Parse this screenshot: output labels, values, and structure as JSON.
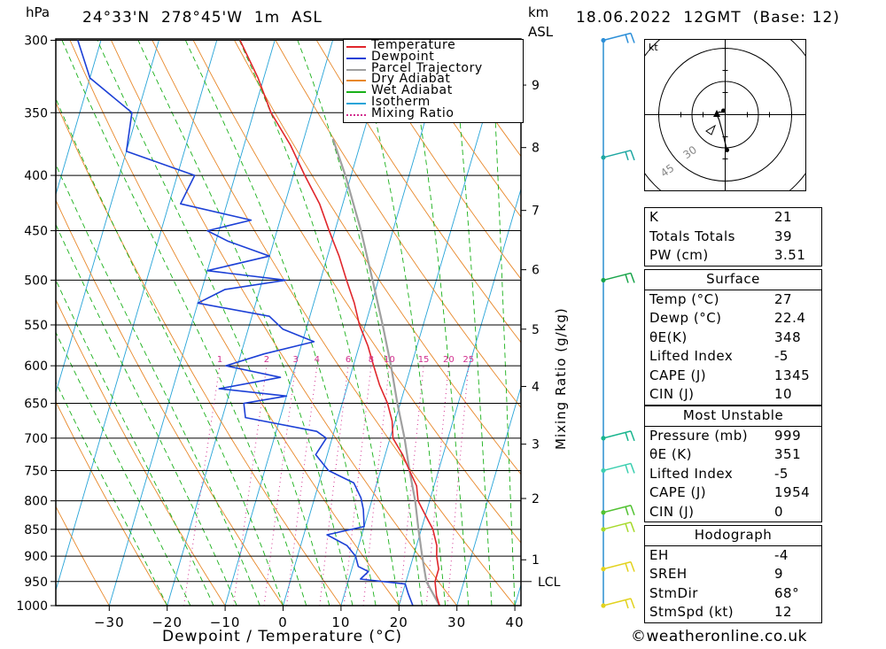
{
  "header": {
    "location": "24°33'N  278°45'W  1m  ASL",
    "datetime": "18.06.2022  12GMT  (Base: 12)",
    "pressure_unit": "hPa",
    "height_unit_km": "km",
    "height_unit_asl": "ASL"
  },
  "chart_data": {
    "type": "skew-t",
    "xlabel": "Dewpoint / Temperature (°C)",
    "ylabel_left": "hPa",
    "ylabel_right": "Mixing Ratio (g/kg)",
    "pressure_levels": [
      300,
      350,
      400,
      450,
      500,
      550,
      600,
      650,
      700,
      750,
      800,
      850,
      900,
      950,
      1000
    ],
    "temperature_ticks": [
      -30,
      -20,
      -10,
      0,
      10,
      20,
      30,
      40
    ],
    "height_km_ticks": [
      {
        "km": "1",
        "p": 907
      },
      {
        "km": "2",
        "p": 796
      },
      {
        "km": "3",
        "p": 709
      },
      {
        "km": "4",
        "p": 627
      },
      {
        "km": "5",
        "p": 555
      },
      {
        "km": "6",
        "p": 489
      },
      {
        "km": "7",
        "p": 431
      },
      {
        "km": "8",
        "p": 377
      },
      {
        "km": "9",
        "p": 330
      }
    ],
    "lcl": {
      "label": "LCL",
      "p": 950
    },
    "mixing_ratio_labels": [
      "1",
      "2",
      "3",
      "4",
      "6",
      "8",
      "10",
      "15",
      "20",
      "25"
    ],
    "legend": [
      "Temperature",
      "Dewpoint",
      "Parcel Trajectory",
      "Dry Adiabat",
      "Wet Adiabat",
      "Isotherm",
      "Mixing Ratio"
    ],
    "colors": {
      "temperature": "#e0262b",
      "dewpoint": "#1c40d6",
      "parcel": "#a0a0a0",
      "dry_adiabat": "#e8882a",
      "wet_adiabat": "#19b019",
      "isotherm": "#27a4d8",
      "mixing_ratio": "#d22e8e"
    },
    "temperature_profile": [
      {
        "p": 1000,
        "t": 27
      },
      {
        "p": 980,
        "t": 26
      },
      {
        "p": 950,
        "t": 25
      },
      {
        "p": 925,
        "t": 25
      },
      {
        "p": 900,
        "t": 24
      },
      {
        "p": 880,
        "t": 23.5
      },
      {
        "p": 850,
        "t": 22
      },
      {
        "p": 825,
        "t": 20
      },
      {
        "p": 800,
        "t": 18
      },
      {
        "p": 775,
        "t": 17
      },
      {
        "p": 750,
        "t": 15
      },
      {
        "p": 725,
        "t": 13
      },
      {
        "p": 700,
        "t": 10.5
      },
      {
        "p": 675,
        "t": 9.5
      },
      {
        "p": 650,
        "t": 7.8
      },
      {
        "p": 625,
        "t": 5.5
      },
      {
        "p": 600,
        "t": 3.5
      },
      {
        "p": 575,
        "t": 1.5
      },
      {
        "p": 550,
        "t": -1
      },
      {
        "p": 525,
        "t": -3
      },
      {
        "p": 500,
        "t": -5.5
      },
      {
        "p": 475,
        "t": -8
      },
      {
        "p": 450,
        "t": -11
      },
      {
        "p": 425,
        "t": -14
      },
      {
        "p": 400,
        "t": -18
      },
      {
        "p": 375,
        "t": -22
      },
      {
        "p": 350,
        "t": -27
      },
      {
        "p": 325,
        "t": -31
      },
      {
        "p": 300,
        "t": -36
      }
    ],
    "dewpoint_profile": [
      {
        "p": 1000,
        "t": 22.4
      },
      {
        "p": 975,
        "t": 21
      },
      {
        "p": 955,
        "t": 20
      },
      {
        "p": 945,
        "t": 12
      },
      {
        "p": 930,
        "t": 13
      },
      {
        "p": 920,
        "t": 11
      },
      {
        "p": 900,
        "t": 10
      },
      {
        "p": 880,
        "t": 8
      },
      {
        "p": 860,
        "t": 4
      },
      {
        "p": 845,
        "t": 10
      },
      {
        "p": 815,
        "t": 9
      },
      {
        "p": 795,
        "t": 8
      },
      {
        "p": 770,
        "t": 6
      },
      {
        "p": 750,
        "t": 1
      },
      {
        "p": 725,
        "t": -2
      },
      {
        "p": 700,
        "t": -1
      },
      {
        "p": 690,
        "t": -3
      },
      {
        "p": 670,
        "t": -16
      },
      {
        "p": 650,
        "t": -17
      },
      {
        "p": 640,
        "t": -10
      },
      {
        "p": 630,
        "t": -22
      },
      {
        "p": 615,
        "t": -12
      },
      {
        "p": 600,
        "t": -22
      },
      {
        "p": 585,
        "t": -16
      },
      {
        "p": 570,
        "t": -8
      },
      {
        "p": 555,
        "t": -14
      },
      {
        "p": 540,
        "t": -17
      },
      {
        "p": 525,
        "t": -30
      },
      {
        "p": 510,
        "t": -26
      },
      {
        "p": 500,
        "t": -16
      },
      {
        "p": 490,
        "t": -30
      },
      {
        "p": 475,
        "t": -20
      },
      {
        "p": 460,
        "t": -28
      },
      {
        "p": 450,
        "t": -32
      },
      {
        "p": 440,
        "t": -25
      },
      {
        "p": 425,
        "t": -38
      },
      {
        "p": 400,
        "t": -37
      },
      {
        "p": 380,
        "t": -50
      },
      {
        "p": 350,
        "t": -51
      },
      {
        "p": 325,
        "t": -60
      },
      {
        "p": 300,
        "t": -64
      }
    ],
    "parcel_profile": [
      {
        "p": 1000,
        "t": 27
      },
      {
        "p": 950,
        "t": 23.5
      },
      {
        "p": 900,
        "t": 21.5
      },
      {
        "p": 850,
        "t": 19.5
      },
      {
        "p": 800,
        "t": 17.5
      },
      {
        "p": 750,
        "t": 15
      },
      {
        "p": 700,
        "t": 12.5
      },
      {
        "p": 650,
        "t": 9.5
      },
      {
        "p": 600,
        "t": 6.5
      },
      {
        "p": 550,
        "t": 3
      },
      {
        "p": 500,
        "t": -1
      },
      {
        "p": 450,
        "t": -5.5
      },
      {
        "p": 400,
        "t": -11
      },
      {
        "p": 370,
        "t": -15
      }
    ],
    "wind_barbs": [
      {
        "p": 1000,
        "color": "#e2d21e"
      },
      {
        "p": 925,
        "color": "#e2d21e"
      },
      {
        "p": 850,
        "color": "#a6d92b"
      },
      {
        "p": 820,
        "color": "#52c232"
      },
      {
        "p": 750,
        "color": "#3ccfb0"
      },
      {
        "p": 700,
        "color": "#19b58e"
      },
      {
        "p": 500,
        "color": "#18a44a"
      },
      {
        "p": 385,
        "color": "#1ea7a2"
      },
      {
        "p": 300,
        "color": "#2c8fd8"
      }
    ]
  },
  "hodograph": {
    "unit": "kt",
    "ring_labels": [
      "30",
      "45"
    ],
    "trace": [
      [
        0.8,
        -16
      ],
      [
        -1.2,
        -8
      ],
      [
        -2.7,
        -2.5
      ],
      [
        -4,
        0.6
      ],
      [
        -2.7,
        1.2
      ],
      [
        -1.5,
        1.1
      ],
      [
        -0.8,
        1.8
      ]
    ],
    "storm_motion": [
      -3.8,
      0.6
    ]
  },
  "indices": [
    {
      "label": "K",
      "value": "21"
    },
    {
      "label": "Totals Totals",
      "value": "39"
    },
    {
      "label": "PW (cm)",
      "value": "3.51"
    }
  ],
  "surface": {
    "title": "Surface",
    "rows": [
      {
        "label": "Temp (°C)",
        "value": "27"
      },
      {
        "label": "Dewp (°C)",
        "value": "22.4"
      },
      {
        "label": "θE(K)",
        "value": "348"
      },
      {
        "label": "Lifted Index",
        "value": "-5"
      },
      {
        "label": "CAPE (J)",
        "value": "1345"
      },
      {
        "label": "CIN (J)",
        "value": "10"
      }
    ]
  },
  "most_unstable": {
    "title": "Most Unstable",
    "rows": [
      {
        "label": "Pressure (mb)",
        "value": "999"
      },
      {
        "label": "θE (K)",
        "value": "351"
      },
      {
        "label": "Lifted Index",
        "value": "-5"
      },
      {
        "label": "CAPE (J)",
        "value": "1954"
      },
      {
        "label": "CIN (J)",
        "value": "0"
      }
    ]
  },
  "hodograph_table": {
    "title": "Hodograph",
    "rows": [
      {
        "label": "EH",
        "value": "-4"
      },
      {
        "label": "SREH",
        "value": "9"
      },
      {
        "label": "StmDir",
        "value": "68°"
      },
      {
        "label": "StmSpd (kt)",
        "value": "12"
      }
    ]
  },
  "footer": {
    "copyright": "©weatheronline.co.uk"
  }
}
